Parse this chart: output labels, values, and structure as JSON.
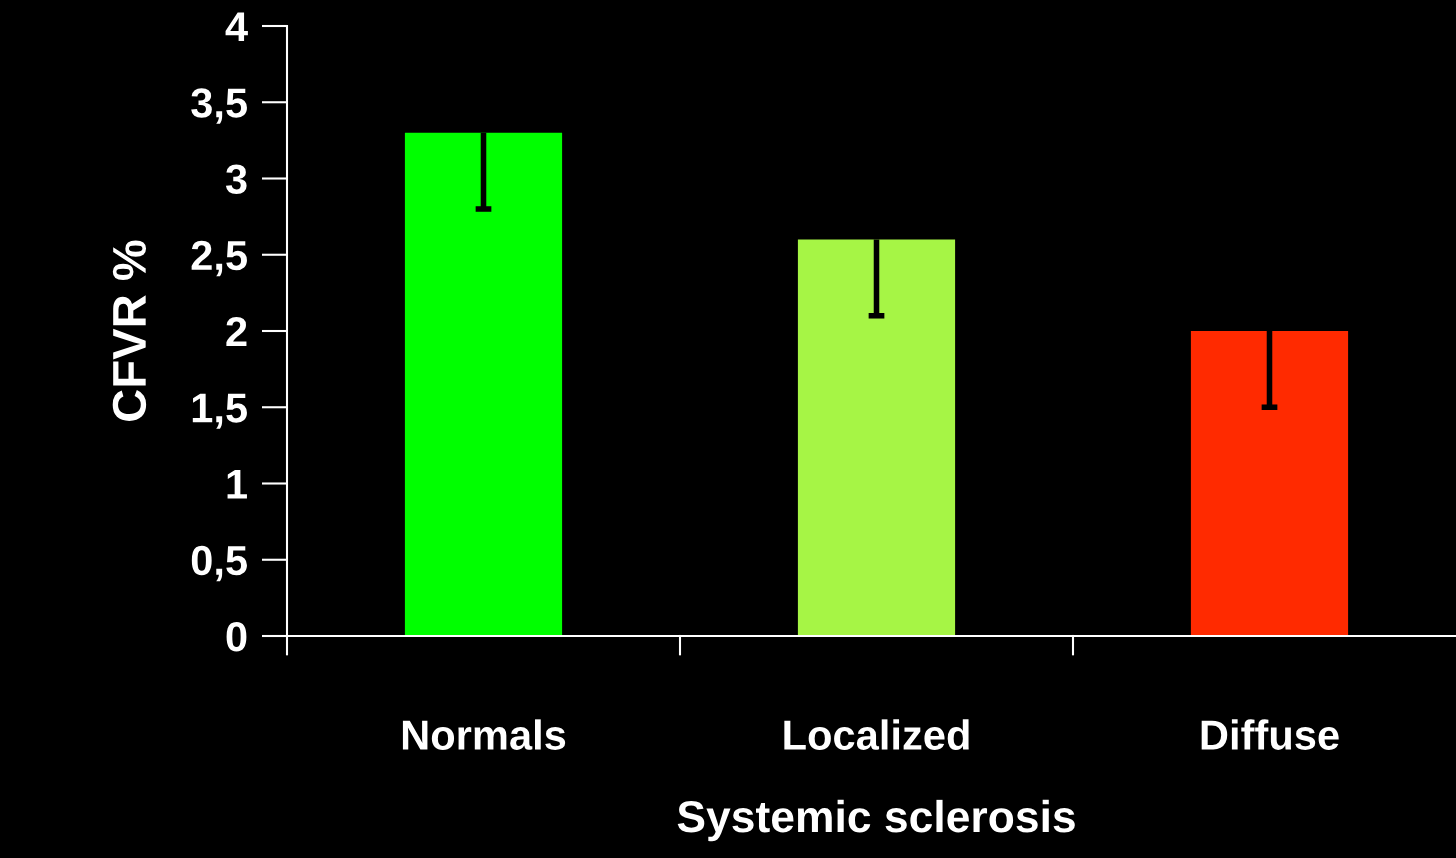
{
  "chart_data": {
    "type": "bar",
    "xlabel": "Systemic sclerosis",
    "ylabel": "CFVR %",
    "categories": [
      "Normals",
      "Localized",
      "Diffuse"
    ],
    "values": [
      3.3,
      2.6,
      2.0
    ],
    "colors": [
      "#00ff00",
      "#a6f545",
      "#ff2a00"
    ],
    "errors": [
      [
        2.8,
        3.3
      ],
      [
        2.1,
        2.6
      ],
      [
        1.5,
        2.0
      ]
    ],
    "ylim": [
      0,
      4
    ],
    "yticks": [
      0,
      {
        "value": 0.5,
        "label": "0,5"
      },
      1,
      {
        "value": 1.5,
        "label": "1,5"
      },
      2,
      {
        "value": 2.5,
        "label": "2,5"
      },
      3,
      {
        "value": 3.5,
        "label": "3,5"
      },
      4
    ],
    "grid": false
  }
}
